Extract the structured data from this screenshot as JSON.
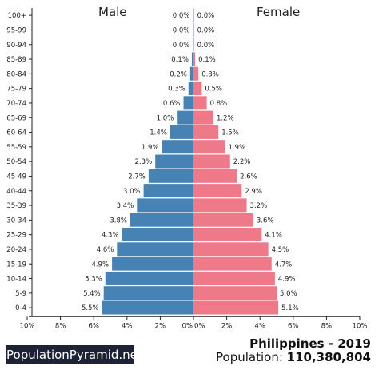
{
  "header": {
    "male_label": "Male",
    "female_label": "Female"
  },
  "footer": {
    "brand": "PopulationPyramid.net",
    "country_year": "Philippines - 2019",
    "population_prefix": "Population: ",
    "population_value": "110,380,804"
  },
  "colors": {
    "male": "#4682b4",
    "female": "#ee7989",
    "axis": "#222222"
  },
  "chart_data": {
    "type": "bar",
    "orientation": "horizontal-population-pyramid",
    "categories": [
      "100+",
      "95-99",
      "90-94",
      "85-89",
      "80-84",
      "75-79",
      "70-74",
      "65-69",
      "60-64",
      "55-59",
      "50-54",
      "45-49",
      "40-44",
      "35-39",
      "30-34",
      "25-29",
      "20-24",
      "15-19",
      "10-14",
      "5-9",
      "0-4"
    ],
    "series": [
      {
        "name": "Male",
        "values": [
          0.0,
          0.0,
          0.0,
          0.1,
          0.2,
          0.3,
          0.6,
          1.0,
          1.4,
          1.9,
          2.3,
          2.7,
          3.0,
          3.4,
          3.8,
          4.3,
          4.6,
          4.9,
          5.3,
          5.4,
          5.5
        ],
        "labels": [
          "0.0%",
          "0.0%",
          "0.0%",
          "0.1%",
          "0.2%",
          "0.3%",
          "0.6%",
          "1.0%",
          "1.4%",
          "1.9%",
          "2.3%",
          "2.7%",
          "3.0%",
          "3.4%",
          "3.8%",
          "4.3%",
          "4.6%",
          "4.9%",
          "5.3%",
          "5.4%",
          "5.5%"
        ]
      },
      {
        "name": "Female",
        "values": [
          0.0,
          0.0,
          0.0,
          0.1,
          0.3,
          0.5,
          0.8,
          1.2,
          1.5,
          1.9,
          2.2,
          2.6,
          2.9,
          3.2,
          3.6,
          4.1,
          4.5,
          4.7,
          4.9,
          5.0,
          5.1
        ],
        "labels": [
          "0.0%",
          "0.0%",
          "0.0%",
          "0.1%",
          "0.3%",
          "0.5%",
          "0.8%",
          "1.2%",
          "1.5%",
          "1.9%",
          "2.2%",
          "2.6%",
          "2.9%",
          "3.2%",
          "3.6%",
          "4.1%",
          "4.5%",
          "4.7%",
          "4.9%",
          "5.0%",
          "5.1%"
        ]
      }
    ],
    "xlim": [
      -10,
      10
    ],
    "x_ticks_left": [
      "10%",
      "8%",
      "6%",
      "4%",
      "2%",
      "0%"
    ],
    "x_ticks_right": [
      "0%",
      "2%",
      "4%",
      "6%",
      "8%",
      "10%"
    ],
    "grid": false
  }
}
